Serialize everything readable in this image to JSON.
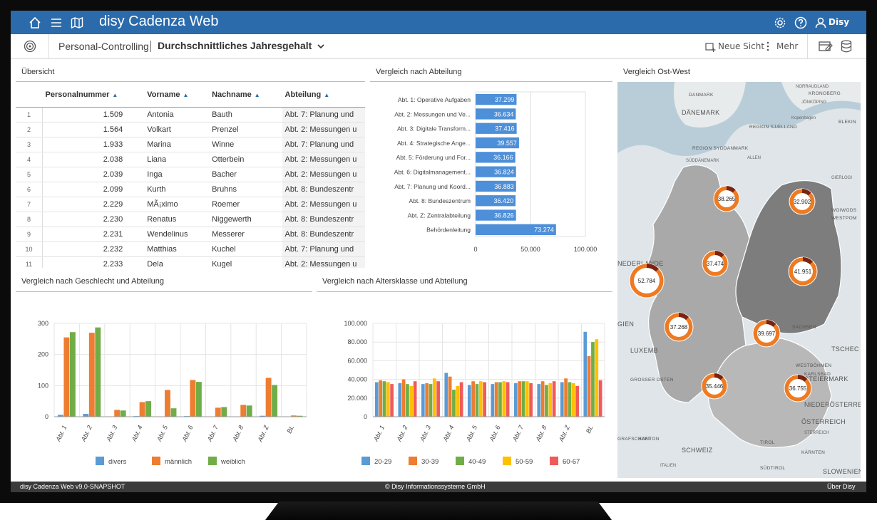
{
  "app": {
    "title": "disy Cadenza Web",
    "user": "Disy",
    "breadcrumb": "Personal-Controlling",
    "view_title": "Durchschnittliches Jahresgehalt",
    "new_view": "Neue Sicht",
    "more": "Mehr",
    "accent": "#2b6bab"
  },
  "overview": {
    "title": "Übersicht",
    "columns": [
      "Personalnummer",
      "Vorname",
      "Nachname",
      "Abteilung"
    ],
    "rows": [
      {
        "idx": "1",
        "nr": "1.509",
        "vorname": "Antonia",
        "nachname": "Bauth",
        "abt": "Abt. 7: Planung und"
      },
      {
        "idx": "2",
        "nr": "1.564",
        "vorname": "Volkart",
        "nachname": "Prenzel",
        "abt": "Abt. 2: Messungen u"
      },
      {
        "idx": "3",
        "nr": "1.933",
        "vorname": "Marina",
        "nachname": "Winne",
        "abt": "Abt. 7: Planung und"
      },
      {
        "idx": "4",
        "nr": "2.038",
        "vorname": "Liana",
        "nachname": "Otterbein",
        "abt": "Abt. 2: Messungen u"
      },
      {
        "idx": "5",
        "nr": "2.039",
        "vorname": "Inga",
        "nachname": "Bacher",
        "abt": "Abt. 2: Messungen u"
      },
      {
        "idx": "6",
        "nr": "2.099",
        "vorname": "Kurth",
        "nachname": "Bruhns",
        "abt": "Abt. 8: Bundeszentr"
      },
      {
        "idx": "7",
        "nr": "2.229",
        "vorname": "MÃ¡ximo",
        "nachname": "Roemer",
        "abt": "Abt. 2: Messungen u"
      },
      {
        "idx": "8",
        "nr": "2.230",
        "vorname": "Renatus",
        "nachname": "Niggewerth",
        "abt": "Abt. 8: Bundeszentr"
      },
      {
        "idx": "9",
        "nr": "2.231",
        "vorname": "Wendelinus",
        "nachname": "Messerer",
        "abt": "Abt. 8: Bundeszentr"
      },
      {
        "idx": "10",
        "nr": "2.232",
        "vorname": "Matthias",
        "nachname": "Kuchel",
        "abt": "Abt. 7: Planung und"
      },
      {
        "idx": "11",
        "nr": "2.233",
        "vorname": "Dela",
        "nachname": "Kugel",
        "abt": "Abt. 2: Messungen u"
      }
    ]
  },
  "dept_compare": {
    "title": "Vergleich nach Abteilung",
    "chart_data": {
      "type": "bar",
      "orientation": "horizontal",
      "categories": [
        "Abt. 1: Operative Aufgaben",
        "Abt. 2: Messungen und Ve...",
        "Abt. 3: Digitale Transform...",
        "Abt. 4: Strategische Ange...",
        "Abt. 5: Förderung und For...",
        "Abt. 6: Digitalmanagement...",
        "Abt. 7: Planung und Koord...",
        "Abt. 8: Bundeszentrum",
        "Abt. Z: Zentralabteilung",
        "Behördenleitung"
      ],
      "values": [
        37299,
        36634,
        37416,
        39557,
        36166,
        36824,
        36883,
        36420,
        36826,
        73274
      ],
      "value_labels": [
        "37.299",
        "36.634",
        "37.416",
        "39.557",
        "36.166",
        "36.824",
        "36.883",
        "36.420",
        "36.826",
        "73.274"
      ],
      "xlim": [
        0,
        100000
      ],
      "xticks": [
        "0",
        "50.000",
        "100.000"
      ],
      "color": "#4d8fd8"
    }
  },
  "gender_compare": {
    "title": "Vergleich nach Geschlecht und Abteilung",
    "chart_data": {
      "type": "bar",
      "categories": [
        "Abt. 1",
        "Abt. 2",
        "Abt. 3",
        "Abt. 4",
        "Abt. 5",
        "Abt. 6",
        "Abt. 7",
        "Abt. 8",
        "Abt. Z",
        "BL"
      ],
      "series": [
        {
          "name": "divers",
          "color": "#5b9bd5",
          "values": [
            6,
            9,
            0,
            2,
            0,
            2,
            1,
            0,
            3,
            1
          ]
        },
        {
          "name": "männlich",
          "color": "#ed7d31",
          "values": [
            255,
            270,
            22,
            47,
            86,
            118,
            29,
            38,
            125,
            4
          ]
        },
        {
          "name": "weiblich",
          "color": "#70ad47",
          "values": [
            272,
            287,
            20,
            50,
            27,
            112,
            31,
            36,
            102,
            3
          ]
        }
      ],
      "ylim": [
        0,
        300
      ],
      "yticks": [
        "0",
        "100",
        "200",
        "300"
      ]
    }
  },
  "age_compare": {
    "title": "Vergleich nach Altersklasse und Abteilung",
    "chart_data": {
      "type": "bar",
      "categories": [
        "Abt. 1",
        "Abt. 2",
        "Abt. 3",
        "Abt. 4",
        "Abt. 5",
        "Abt. 6",
        "Abt. 7",
        "Abt. 8",
        "Abt. Z",
        "BL"
      ],
      "series": [
        {
          "name": "20-29",
          "color": "#5b9bd5",
          "values": [
            37000,
            36000,
            35000,
            47000,
            34000,
            35000,
            36000,
            35000,
            37000,
            91000
          ]
        },
        {
          "name": "30-39",
          "color": "#ed7d31",
          "values": [
            39000,
            40000,
            36000,
            43000,
            38000,
            37000,
            38000,
            38000,
            41000,
            65000
          ]
        },
        {
          "name": "40-49",
          "color": "#70ad47",
          "values": [
            38000,
            35000,
            35000,
            29000,
            35000,
            37000,
            38000,
            34000,
            37000,
            80000
          ]
        },
        {
          "name": "50-59",
          "color": "#ffc000",
          "values": [
            37000,
            33000,
            41000,
            33000,
            38000,
            38000,
            38000,
            36000,
            36000,
            83000
          ]
        },
        {
          "name": "60-67",
          "color": "#f05a5a",
          "values": [
            35000,
            38000,
            38000,
            37000,
            37000,
            37000,
            36000,
            38000,
            33000,
            39000
          ]
        }
      ],
      "ylim": [
        0,
        100000
      ],
      "yticks": [
        "0",
        "20.000",
        "40.000",
        "60.000",
        "80.000",
        "100.000"
      ]
    }
  },
  "east_west": {
    "title": "Vergleich Ost-West",
    "map_labels": [
      "DÄNEMARK",
      "NEDERLANDE",
      "LUXEMB",
      "SCHWEIZ",
      "ÖSTERREICH",
      "TSCHEC",
      "SLOWENIEN",
      "STEIERMARK",
      "NIEDERÖSTERREICH",
      "GIEN",
      "DANMARK",
      "REGION SYDDANMARK",
      "REGION SJÆLLAND",
      "KRONOBERG",
      "BLEKIN",
      "WOIWODS",
      "WESTPOM",
      "SACHSEN",
      "WESTBÖHMEN",
      "KARLSBAD",
      "GROSSER OSTEN",
      "GRAFSCHAFT",
      "KANTON",
      "TIROL",
      "SÜDTIROL",
      "KÄRNTEN"
    ],
    "sub_labels": [
      "NORRAUDLAND",
      "JÖNKÖPING",
      "Kopenhagen",
      "SÜDDÄNEMARK",
      "ALLEN",
      "GIERLOGI",
      "STERREICH",
      "ITALIEN"
    ],
    "markers": [
      "38.265",
      "32.902",
      "37.474",
      "41.951",
      "52.784",
      "37.268",
      "39.697",
      "35.446",
      "36.755"
    ]
  },
  "footer": {
    "version": "disy Cadenza Web v9.0-SNAPSHOT",
    "copyright": "© Disy Informationssysteme GmbH",
    "about": "Über Disy"
  }
}
